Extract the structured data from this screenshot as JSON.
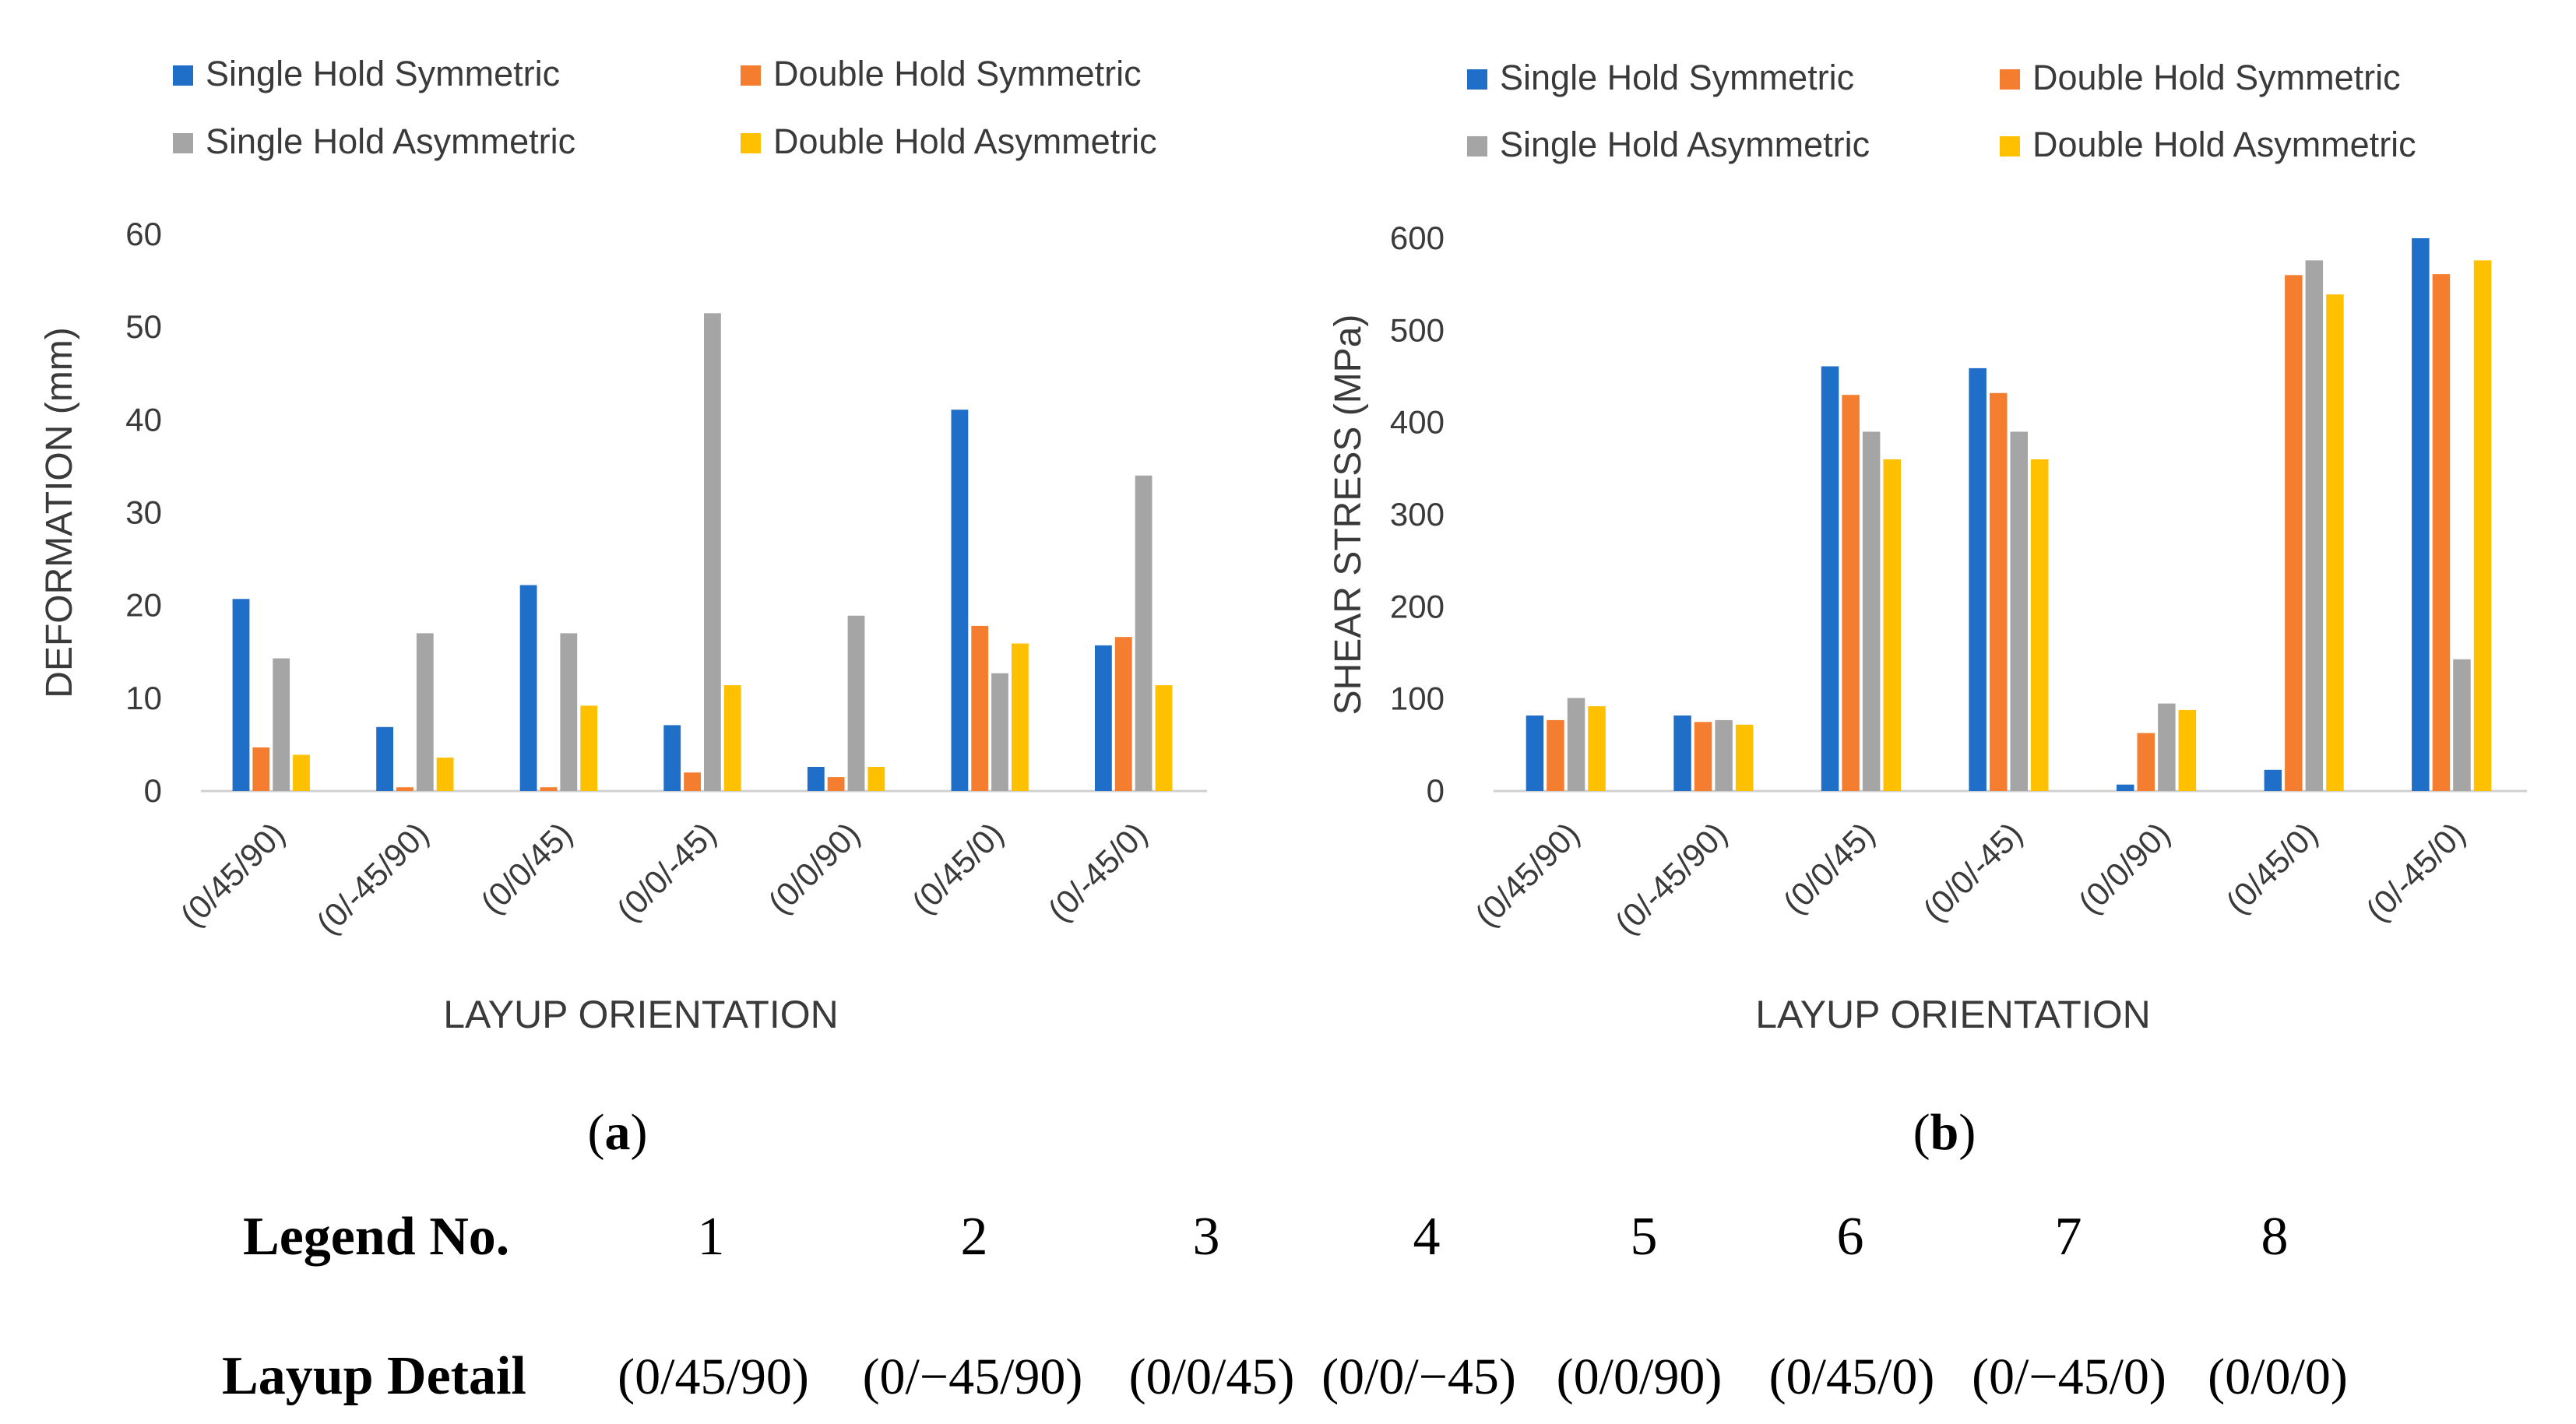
{
  "colors": {
    "single_hold_symmetric": "#1f6fc9",
    "double_hold_symmetric": "#f47d30",
    "single_hold_asymmetric": "#a5a5a5",
    "double_hold_asymmetric": "#ffc000",
    "axis": "#d0d0d0",
    "text": "#3a3a3a"
  },
  "chart_data": [
    {
      "type": "bar",
      "panel_label": "a",
      "xlabel": "LAYUP ORIENTATION",
      "ylabel": "DEFORMATION (mm)",
      "ylim": [
        0,
        60
      ],
      "yticks": [
        0,
        10,
        20,
        30,
        40,
        50,
        60
      ],
      "grid": false,
      "legend": "top",
      "categories": [
        "(0/45/90)",
        "(0/-45/90)",
        "(0/0/45)",
        "(0/0/-45)",
        "(0/0/90)",
        "(0/45/0)",
        "(0/-45/0)"
      ],
      "series": [
        {
          "name": "Single Hold Symmetric",
          "color_key": "single_hold_symmetric",
          "values": [
            20.7,
            6.9,
            22.2,
            7.1,
            2.6,
            41.1,
            15.7
          ]
        },
        {
          "name": "Double Hold Symmetric",
          "color_key": "double_hold_symmetric",
          "values": [
            4.7,
            0.4,
            0.4,
            2.0,
            1.5,
            17.8,
            16.6
          ]
        },
        {
          "name": "Single Hold Asymmetric",
          "color_key": "single_hold_asymmetric",
          "values": [
            14.3,
            17.0,
            17.0,
            51.5,
            18.9,
            12.7,
            34.0
          ]
        },
        {
          "name": "Double Hold Asymmetric",
          "color_key": "double_hold_asymmetric",
          "values": [
            3.9,
            3.6,
            9.2,
            11.4,
            2.6,
            15.9,
            11.4
          ]
        }
      ]
    },
    {
      "type": "bar",
      "panel_label": "b",
      "xlabel": "LAYUP ORIENTATION",
      "ylabel": "SHEAR STRESS (MPa)",
      "ylim": [
        0,
        600
      ],
      "yticks": [
        0,
        100,
        200,
        300,
        400,
        500,
        600
      ],
      "grid": false,
      "legend": "top",
      "categories": [
        "(0/45/90)",
        "(0/-45/90)",
        "(0/0/45)",
        "(0/0/-45)",
        "(0/0/90)",
        "(0/45/0)",
        "(0/-45/0)"
      ],
      "series": [
        {
          "name": "Single Hold Symmetric",
          "color_key": "single_hold_symmetric",
          "values": [
            82,
            82,
            461,
            459,
            7,
            23,
            600
          ]
        },
        {
          "name": "Double Hold Symmetric",
          "color_key": "double_hold_symmetric",
          "values": [
            77,
            75,
            430,
            432,
            63,
            560,
            561
          ]
        },
        {
          "name": "Single Hold Asymmetric",
          "color_key": "single_hold_asymmetric",
          "values": [
            101,
            77,
            390,
            390,
            95,
            576,
            143
          ]
        },
        {
          "name": "Double Hold Asymmetric",
          "color_key": "double_hold_asymmetric",
          "values": [
            92,
            72,
            360,
            360,
            88,
            539,
            576
          ]
        }
      ]
    }
  ],
  "legend_table": {
    "row1_label": "Legend No.",
    "row2_label": "Layup Detail",
    "numbers": [
      "1",
      "2",
      "3",
      "4",
      "5",
      "6",
      "7",
      "8"
    ],
    "details": [
      "(0/45/90)",
      "(0/−45/90)",
      "(0/0/45)",
      "(0/0/−45)",
      "(0/0/90)",
      "(0/45/0)",
      "(0/−45/0)",
      "(0/0/0)"
    ]
  }
}
